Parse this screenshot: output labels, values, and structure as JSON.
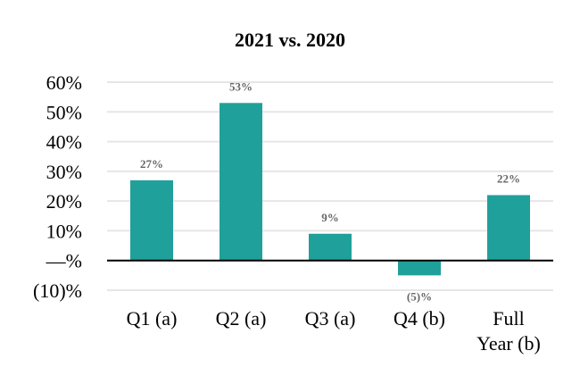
{
  "chart_data": {
    "type": "bar",
    "title": "2021 vs. 2020",
    "categories": [
      [
        "Q1 (a)"
      ],
      [
        "Q2 (a)"
      ],
      [
        "Q3 (a)"
      ],
      [
        "Q4 (b)"
      ],
      [
        "Full",
        "Year (b)"
      ]
    ],
    "values": [
      27,
      53,
      9,
      -5,
      22
    ],
    "data_labels": [
      "27%",
      "53%",
      "9%",
      "(5)%",
      "22%"
    ],
    "yticks": [
      {
        "value": 60,
        "label": "60%"
      },
      {
        "value": 50,
        "label": "50%"
      },
      {
        "value": 40,
        "label": "40%"
      },
      {
        "value": 30,
        "label": "30%"
      },
      {
        "value": 20,
        "label": "20%"
      },
      {
        "value": 10,
        "label": "10%"
      },
      {
        "value": 0,
        "label": "—%"
      },
      {
        "value": -10,
        "label": "(10)%"
      }
    ],
    "ylim": [
      -10,
      60
    ],
    "grid": true,
    "bar_color": "#20a09b",
    "grid_color": "#e6e6e6",
    "axis_color": "#000000"
  }
}
